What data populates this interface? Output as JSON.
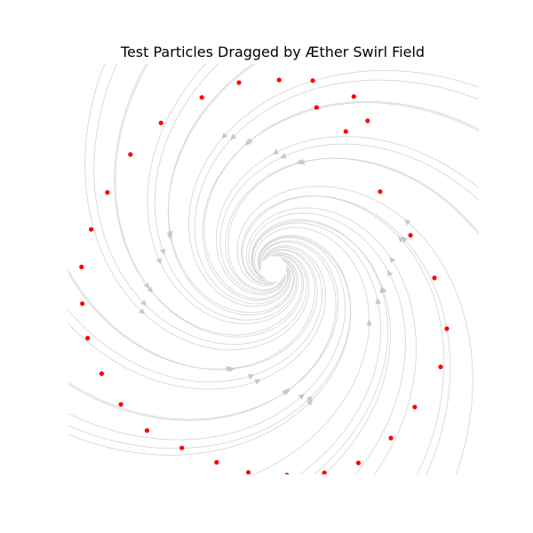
{
  "chart_data": {
    "type": "scatter",
    "title": "Test Particles Dragged by Æther Swirl Field",
    "xlabel": "",
    "ylabel": "",
    "xlim": [
      -1.0,
      1.0
    ],
    "ylim": [
      -1.0,
      1.0
    ],
    "axes_visible": false,
    "grid": false,
    "legend": "none",
    "background": {
      "kind": "streamplot",
      "field": "spiral",
      "color": "#d3d3d3",
      "arrow_color": "#c8c8c8"
    },
    "series": [
      {
        "marker_color": "#ff0000",
        "points": [
          {
            "x": 0.027,
            "y": 0.922
          },
          {
            "x": 0.209,
            "y": 0.788
          },
          {
            "x": 0.352,
            "y": 0.671
          },
          {
            "x": 0.519,
            "y": 0.378
          },
          {
            "x": 0.667,
            "y": 0.165
          },
          {
            "x": 0.784,
            "y": -0.043
          },
          {
            "x": 0.844,
            "y": -0.29
          },
          {
            "x": 0.814,
            "y": -0.476
          },
          {
            "x": 0.688,
            "y": -0.672
          },
          {
            "x": 0.572,
            "y": -0.823
          },
          {
            "x": 0.413,
            "y": -0.944
          },
          {
            "x": 0.247,
            "y": -0.992
          },
          {
            "x": 0.065,
            "y": -1.004
          },
          {
            "x": -0.123,
            "y": -0.991
          },
          {
            "x": -0.278,
            "y": -0.941
          },
          {
            "x": -0.447,
            "y": -0.871
          },
          {
            "x": -0.617,
            "y": -0.786
          },
          {
            "x": -0.744,
            "y": -0.659
          },
          {
            "x": -0.838,
            "y": -0.509
          },
          {
            "x": -0.906,
            "y": -0.336
          },
          {
            "x": -0.932,
            "y": -0.168
          },
          {
            "x": -0.936,
            "y": 0.011
          },
          {
            "x": -0.889,
            "y": 0.194
          },
          {
            "x": -0.81,
            "y": 0.374
          },
          {
            "x": -0.698,
            "y": 0.559
          },
          {
            "x": -0.549,
            "y": 0.713
          },
          {
            "x": -0.35,
            "y": 0.837
          },
          {
            "x": -0.169,
            "y": 0.909
          },
          {
            "x": 0.191,
            "y": 0.919
          },
          {
            "x": 0.391,
            "y": 0.841
          },
          {
            "x": 0.458,
            "y": 0.723
          }
        ]
      }
    ]
  }
}
